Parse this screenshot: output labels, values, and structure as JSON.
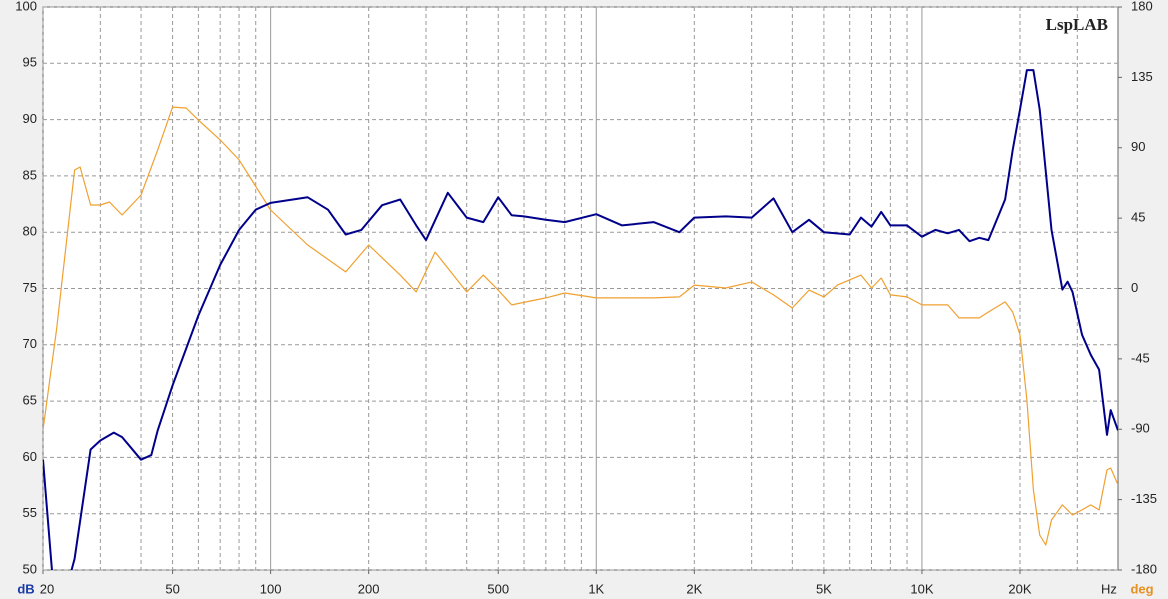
{
  "chart_data": {
    "type": "line",
    "title": "LspLAB",
    "log_x": true,
    "x_label": "Hz",
    "y_label": "dB",
    "y2_label": "deg",
    "xlim": [
      20,
      40000
    ],
    "ylim": [
      50,
      100
    ],
    "y2lim": [
      -180,
      180
    ],
    "xticks": [
      20,
      50,
      100,
      200,
      500,
      {
        "value": 1000,
        "label": "1K"
      },
      {
        "value": 2000,
        "label": "2K"
      },
      {
        "value": 5000,
        "label": "5K"
      },
      {
        "value": 10000,
        "label": "10K"
      },
      {
        "value": 20000,
        "label": "20K"
      }
    ],
    "xgrid": [
      20,
      30,
      40,
      50,
      60,
      70,
      80,
      90,
      100,
      200,
      300,
      400,
      500,
      600,
      700,
      800,
      900,
      1000,
      2000,
      3000,
      4000,
      5000,
      6000,
      7000,
      8000,
      9000,
      10000,
      20000,
      30000
    ],
    "yticks": [
      50,
      55,
      60,
      65,
      70,
      75,
      80,
      85,
      90,
      95,
      100
    ],
    "y2ticks": [
      -180,
      -135,
      -90,
      -45,
      0,
      45,
      90,
      135,
      180
    ],
    "grid": true,
    "series": [
      {
        "name": "dB",
        "color": "#00008b",
        "axis": "y",
        "x": [
          20,
          22,
          25,
          28,
          30,
          33,
          35,
          40,
          43,
          45,
          50,
          60,
          70,
          80,
          90,
          100,
          130,
          150,
          170,
          190,
          220,
          250,
          280,
          300,
          350,
          400,
          450,
          500,
          550,
          600,
          700,
          800,
          1000,
          1200,
          1500,
          1800,
          2000,
          2500,
          3000,
          3500,
          4000,
          4500,
          5000,
          6000,
          6500,
          7000,
          7500,
          8000,
          9000,
          10000,
          11000,
          12000,
          13000,
          14000,
          15000,
          16000,
          18000,
          19000,
          20000,
          21000,
          22000,
          23000,
          25000,
          27000,
          28000,
          29000,
          31000,
          33000,
          35000,
          37000,
          38000,
          40000
        ],
        "values": [
          59.8,
          45,
          51,
          60.7,
          61.5,
          62.2,
          61.8,
          59.8,
          60.2,
          62.4,
          66.4,
          72.6,
          77.1,
          80.2,
          82,
          82.6,
          83.1,
          82,
          79.8,
          80.2,
          82.4,
          82.9,
          80.6,
          79.3,
          83.5,
          81.3,
          80.9,
          83.1,
          81.5,
          81.4,
          81.1,
          80.9,
          81.6,
          80.6,
          80.9,
          80,
          81.3,
          81.4,
          81.3,
          83,
          80,
          81.1,
          80,
          79.8,
          81.3,
          80.5,
          81.8,
          80.6,
          80.6,
          79.6,
          80.2,
          79.9,
          80.2,
          79.2,
          79.5,
          79.3,
          82.9,
          87.3,
          90.9,
          94.4,
          94.4,
          90.9,
          80.2,
          74.9,
          75.6,
          74.7,
          70.9,
          69.1,
          67.8,
          62,
          64.2,
          62.4
        ]
      },
      {
        "name": "deg",
        "color": "#f0a030",
        "axis": "y2",
        "x": [
          20,
          22,
          25,
          26,
          28,
          30,
          32,
          35,
          40,
          45,
          50,
          55,
          60,
          70,
          80,
          100,
          130,
          170,
          200,
          250,
          280,
          320,
          400,
          450,
          500,
          550,
          700,
          800,
          1000,
          1200,
          1500,
          1800,
          2000,
          2500,
          3000,
          3500,
          4000,
          4500,
          5000,
          5500,
          6500,
          7000,
          7500,
          8000,
          9000,
          10000,
          12000,
          13000,
          15000,
          16000,
          18000,
          19000,
          20000,
          21000,
          22000,
          23000,
          24000,
          25000,
          27000,
          29000,
          31000,
          33000,
          35000,
          37000,
          38000,
          40000
        ],
        "values": [
          -90.5,
          -26.5,
          75.8,
          77.7,
          53.4,
          53.4,
          55.3,
          47,
          59.8,
          88.6,
          116,
          115.4,
          107.7,
          95,
          82.2,
          50.2,
          27.8,
          10.6,
          27.8,
          8.6,
          -2.2,
          23.3,
          -2.2,
          8.6,
          -1,
          -10.5,
          -6,
          -2.9,
          -6,
          -6,
          -6,
          -5.4,
          2.2,
          0.3,
          4.2,
          -4.1,
          -12.5,
          -1,
          -5.4,
          2.2,
          8.6,
          0.3,
          6.7,
          -4.1,
          -5.4,
          -10.5,
          -10.5,
          -18.8,
          -18.8,
          -15,
          -8.6,
          -15,
          -29.7,
          -71.3,
          -128.8,
          -157.6,
          -164,
          -148,
          -138.4,
          -144.8,
          -141.6,
          -138.4,
          -141.6,
          -116,
          -114.8,
          -125.6
        ]
      }
    ]
  }
}
